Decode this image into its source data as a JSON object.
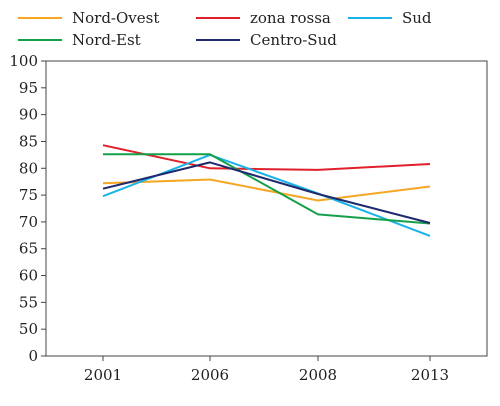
{
  "chart_data": {
    "type": "line",
    "categories": [
      "2001",
      "2006",
      "2008",
      "2013"
    ],
    "ylim": [
      0,
      100
    ],
    "yticks": [
      0,
      50,
      55,
      60,
      65,
      70,
      75,
      80,
      85,
      90,
      95,
      100
    ],
    "grid": false,
    "legend_position": "top",
    "series": [
      {
        "name": "Nord-Ovest",
        "color": "#f5a623",
        "values": [
          77.2,
          77.9,
          74.0,
          76.6
        ]
      },
      {
        "name": "zona rossa",
        "color": "#e0202b",
        "values": [
          84.3,
          80.0,
          79.7,
          80.8
        ]
      },
      {
        "name": "Sud",
        "color": "#1ab2e8",
        "values": [
          74.8,
          82.5,
          75.3,
          67.4
        ]
      },
      {
        "name": "Nord-Est",
        "color": "#14a04a",
        "values": [
          82.6,
          82.6,
          71.4,
          69.7
        ]
      },
      {
        "name": "Centro-Sud",
        "color": "#1f2a6e",
        "values": [
          76.2,
          81.1,
          75.2,
          69.8
        ]
      }
    ]
  }
}
